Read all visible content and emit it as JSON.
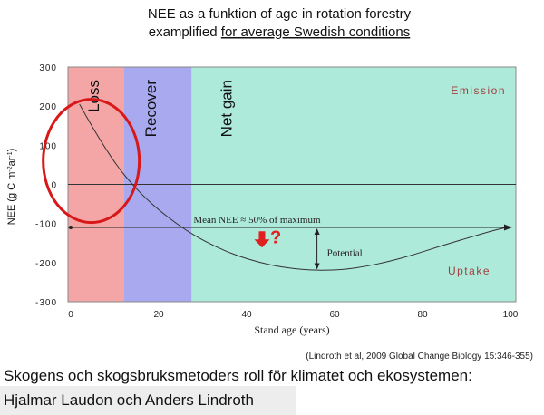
{
  "chart_data": {
    "type": "line",
    "title_line1": "NEE as a funktion of age in rotation forestry",
    "title_line2_prefix": "examplified ",
    "title_line2_underlined": "for average Swedish conditions",
    "xlabel": "Stand age (years)",
    "ylabel": "NEE (g C m-2ar-1)",
    "xlim": [
      0,
      100
    ],
    "ylim": [
      -300,
      300
    ],
    "x_ticks": [
      0,
      20,
      40,
      60,
      80,
      100
    ],
    "y_ticks": [
      300,
      200,
      100,
      0,
      -100,
      -200,
      -300
    ],
    "phases": [
      {
        "label": "Loss",
        "x_start": 0,
        "x_end": 12,
        "color": "#f4a6a6"
      },
      {
        "label": "Recover",
        "x_start": 12,
        "x_end": 27.5,
        "color": "#a9a9f0"
      },
      {
        "label": "Net gain",
        "x_start": 27.5,
        "x_end": 100,
        "color": "#aeead9"
      }
    ],
    "series": [
      {
        "values_x": [
          2,
          5,
          8,
          11,
          14,
          17,
          20,
          24,
          28,
          33,
          38,
          43,
          48,
          53,
          57,
          62,
          67,
          72,
          78,
          84,
          90,
          96,
          100
        ],
        "values_y": [
          205,
          145,
          90,
          40,
          0,
          -35,
          -65,
          -100,
          -130,
          -160,
          -183,
          -200,
          -212,
          -218,
          -220,
          -218,
          -210,
          -198,
          -180,
          -158,
          -138,
          -118,
          -108
        ]
      }
    ],
    "mean_nee": -110,
    "min_nee": -220,
    "annotations": {
      "emission": "Emission",
      "uptake": "Uptake",
      "mean": "Mean NEE ≈ 50% of maximum",
      "potential": "Potential",
      "question": "?",
      "source": "(Lindroth et al, 2009 Global Change Biology 15:346-355)"
    },
    "colors": {
      "arrow": "#e02020",
      "circle": "#d81818",
      "curve": "#333333"
    }
  },
  "caption": {
    "line1": "Skogens och skogsbruksmetoders roll för klimatet och ekosystemen:",
    "line2": "Hjalmar Laudon och  Anders Lindroth"
  }
}
